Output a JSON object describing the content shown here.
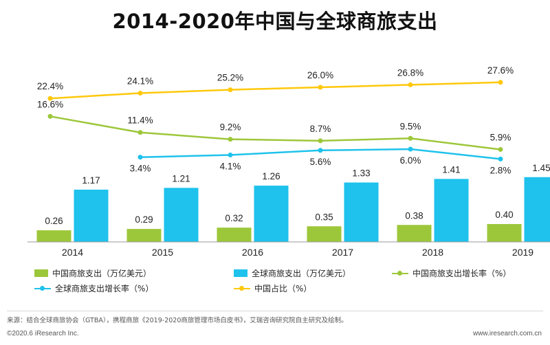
{
  "title": "2014-2020年中国与全球商旅支出",
  "chart_data": {
    "type": "bar",
    "title": "2014-2020年中国与全球商旅支出",
    "categories": [
      "2014",
      "2015",
      "2016",
      "2017",
      "2018",
      "2019"
    ],
    "bar_series": [
      {
        "key": "china",
        "name": "中国商旅支出（万亿美元）",
        "color": "#9dc73a",
        "values": [
          0.26,
          0.29,
          0.32,
          0.35,
          0.38,
          0.4
        ],
        "labels": [
          "0.26",
          "0.29",
          "0.32",
          "0.35",
          "0.38",
          "0.40"
        ]
      },
      {
        "key": "global",
        "name": "全球商旅支出（万亿美元）",
        "color": "#1ec2ec",
        "values": [
          1.17,
          1.21,
          1.26,
          1.33,
          1.41,
          1.45
        ],
        "labels": [
          "1.17",
          "1.21",
          "1.26",
          "1.33",
          "1.41",
          "1.45"
        ]
      }
    ],
    "line_series": [
      {
        "key": "china_share",
        "name": "中国占比（%）",
        "color": "#ffc80a",
        "values": [
          22.4,
          24.1,
          25.2,
          26.0,
          26.8,
          27.6
        ],
        "labels": [
          "22.4%",
          "24.1%",
          "25.2%",
          "26.0%",
          "26.8%",
          "27.6%"
        ],
        "label_position": "above",
        "start_index": 0
      },
      {
        "key": "china_growth",
        "name": "中国商旅支出增长率（%）",
        "color": "#9dc73a",
        "values": [
          16.6,
          11.4,
          9.2,
          8.7,
          9.5,
          5.9
        ],
        "labels": [
          "16.6%",
          "11.4%",
          "9.2%",
          "8.7%",
          "9.5%",
          "5.9%"
        ],
        "label_position": "above",
        "start_index": 0
      },
      {
        "key": "global_growth",
        "name": "全球商旅支出增长率（%）",
        "color": "#1ec2ec",
        "values": [
          3.4,
          4.1,
          5.6,
          6.0,
          2.8
        ],
        "labels": [
          "3.4%",
          "4.1%",
          "5.6%",
          "6.0%",
          "2.8%"
        ],
        "label_position": "below",
        "start_index": 1
      }
    ],
    "xlabel": "",
    "ylabel": "",
    "legend_position": "bottom",
    "grid": false
  },
  "legend": {
    "china_spend": "中国商旅支出（万亿美元）",
    "global_spend": "全球商旅支出（万亿美元）",
    "china_growth": "中国商旅支出增长率（%）",
    "global_growth": "全球商旅支出增长率（%）",
    "china_share": "中国占比（%）"
  },
  "colors": {
    "green": "#9dc73a",
    "blue": "#1ec2ec",
    "yellow": "#ffc80a"
  },
  "source": "来源：结合全球商旅协会（GTBA），携程商旅《2019-2020商旅管理市场白皮书》，艾瑞咨询研究院自主研究及绘制。",
  "footer": {
    "copyright": "©2020.6 iResearch Inc.",
    "website": "www.iresearch.com.cn"
  }
}
